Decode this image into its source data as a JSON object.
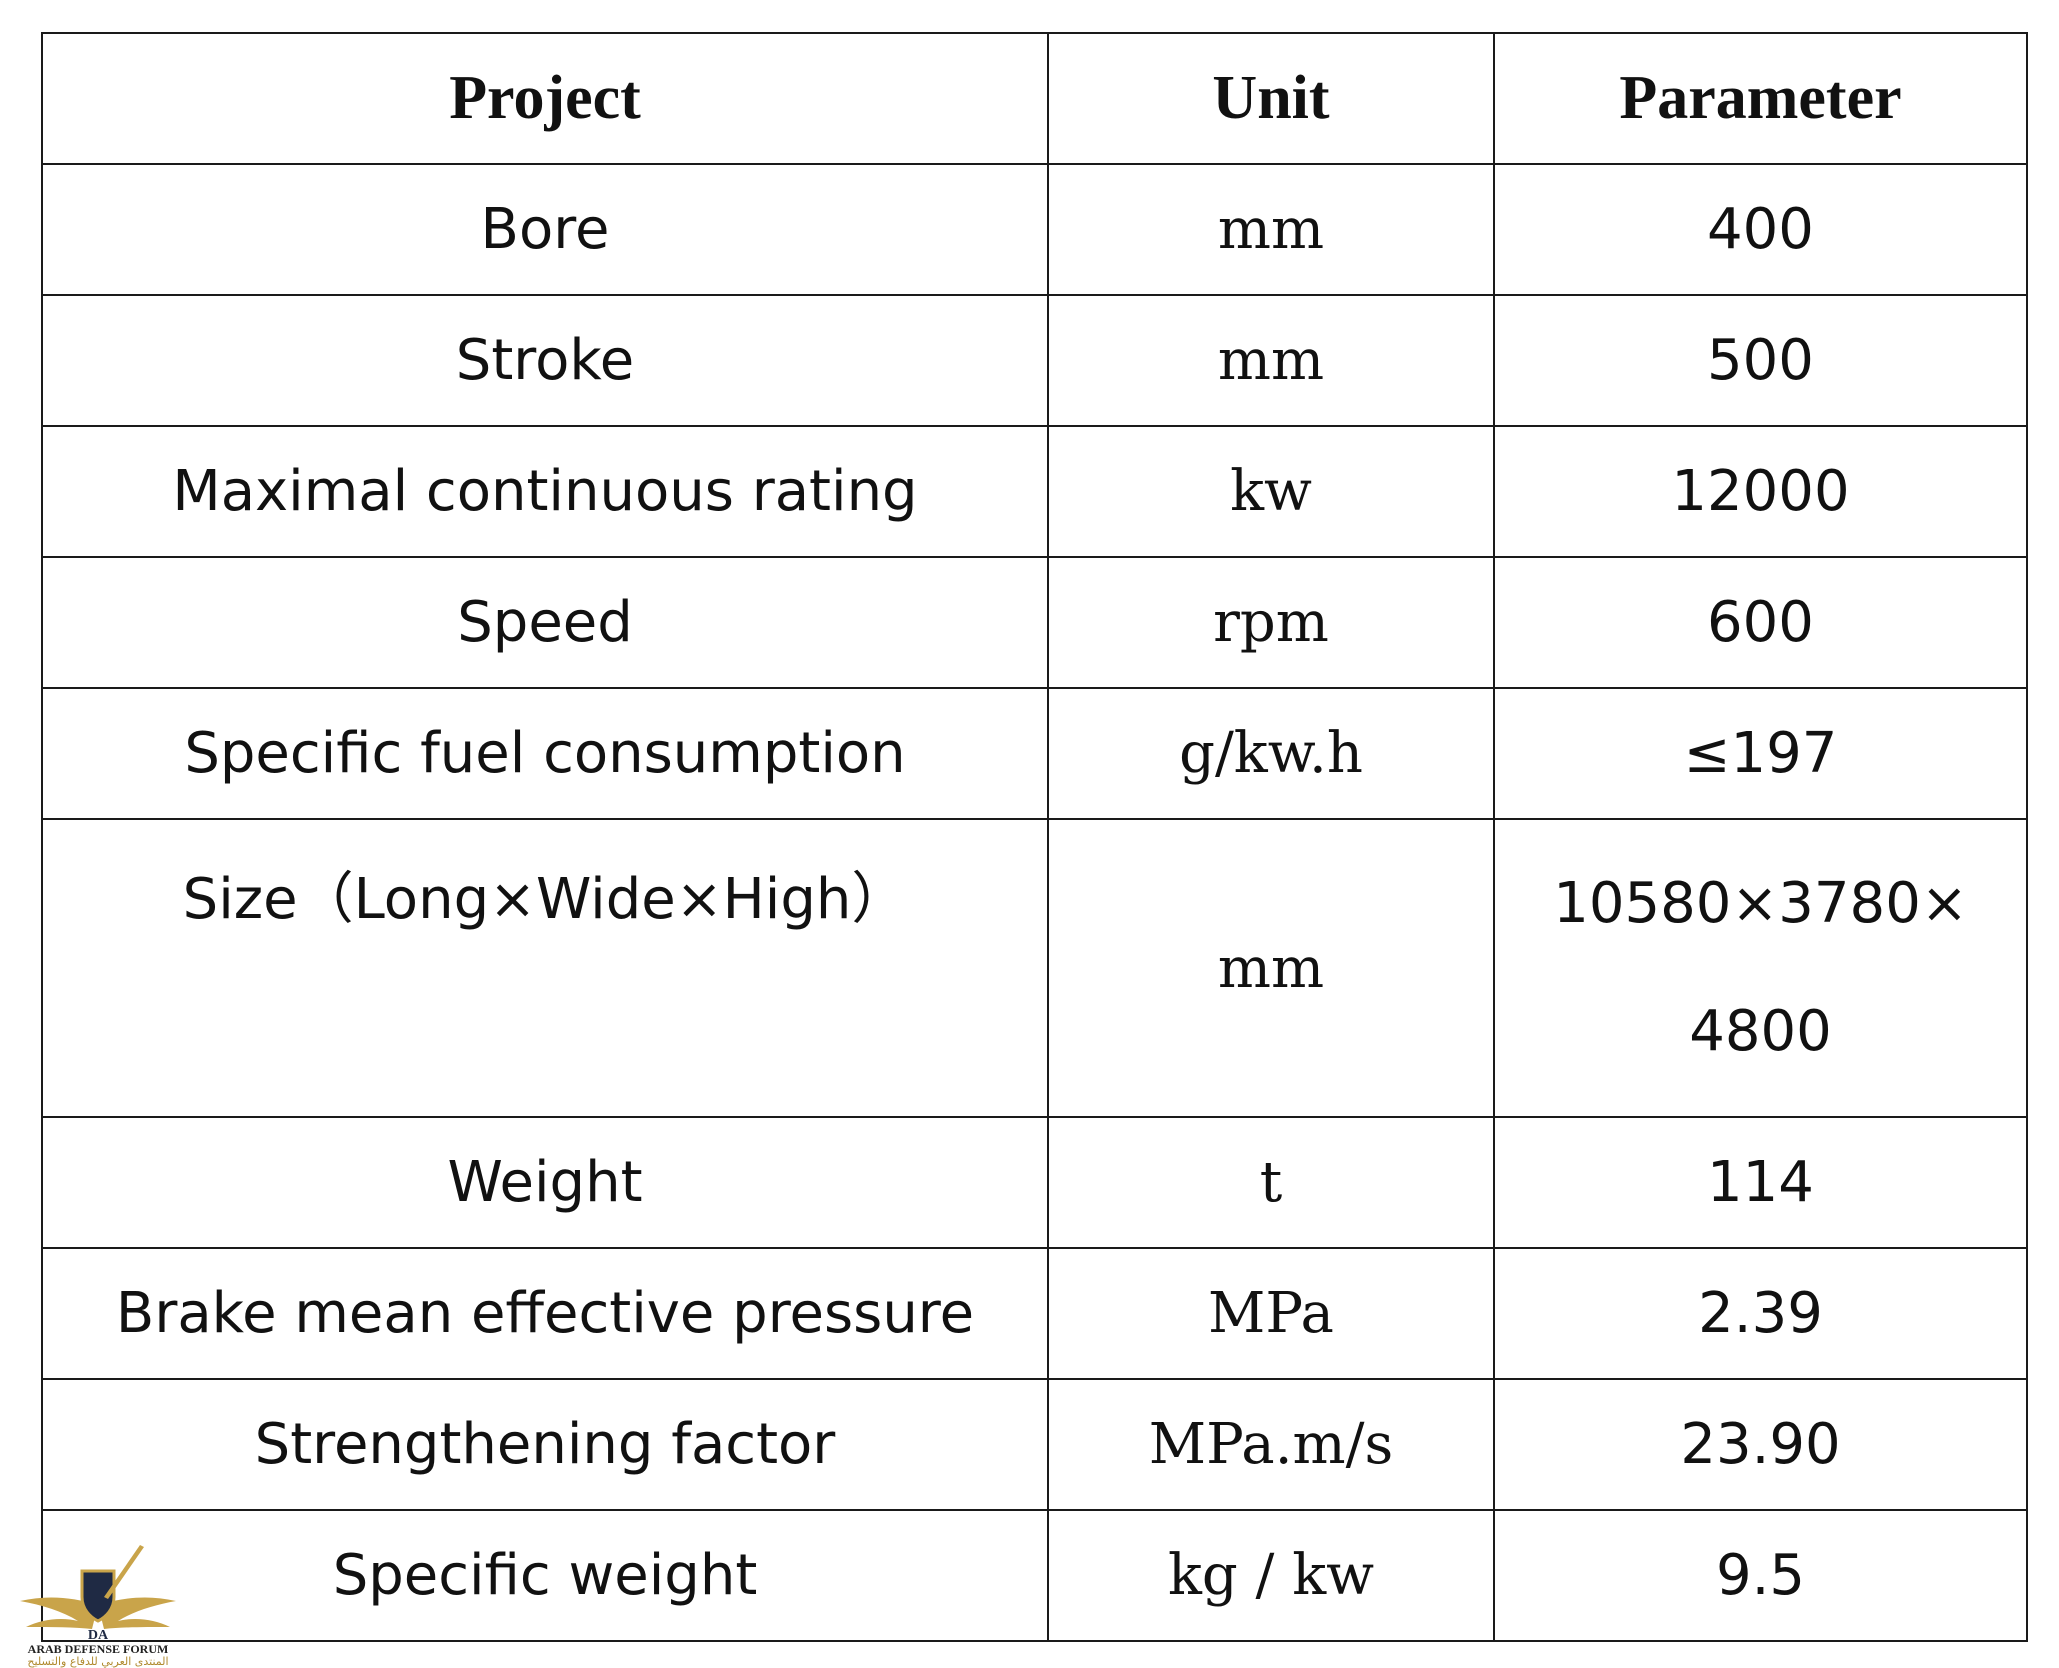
{
  "table": {
    "headers": [
      "Project",
      "Unit",
      "Parameter"
    ],
    "rows": [
      {
        "project": "Bore",
        "unit": "mm",
        "parameter": "400"
      },
      {
        "project": "Stroke",
        "unit": "mm",
        "parameter": "500"
      },
      {
        "project": "Maximal continuous rating",
        "unit": "kw",
        "parameter": "12000"
      },
      {
        "project": "Speed",
        "unit": "rpm",
        "parameter": "600"
      },
      {
        "project": "Specific fuel consumption",
        "unit": "g/kw.h",
        "parameter": "≤197"
      },
      {
        "project": "Size（Long×Wide×High）",
        "unit": "mm",
        "parameter_line1": "10580×3780×",
        "parameter_line2": "4800"
      },
      {
        "project": "Weight",
        "unit": "t",
        "parameter": "114"
      },
      {
        "project": "Brake mean effective pressure",
        "unit": "MPa",
        "parameter": "2.39"
      },
      {
        "project": "Strengthening factor",
        "unit": "MPa.m/s",
        "parameter": "23.90"
      },
      {
        "project": "Specific weight",
        "unit": "kg / kw",
        "parameter": "9.5"
      }
    ]
  },
  "watermark": {
    "logo_text": "DA",
    "title": "ARAB DEFENSE FORUM",
    "subtitle": "المنتدى العربي للدفاع والتسليح",
    "colors": {
      "gold": "#c9a44a",
      "navy": "#1f2a44"
    }
  }
}
